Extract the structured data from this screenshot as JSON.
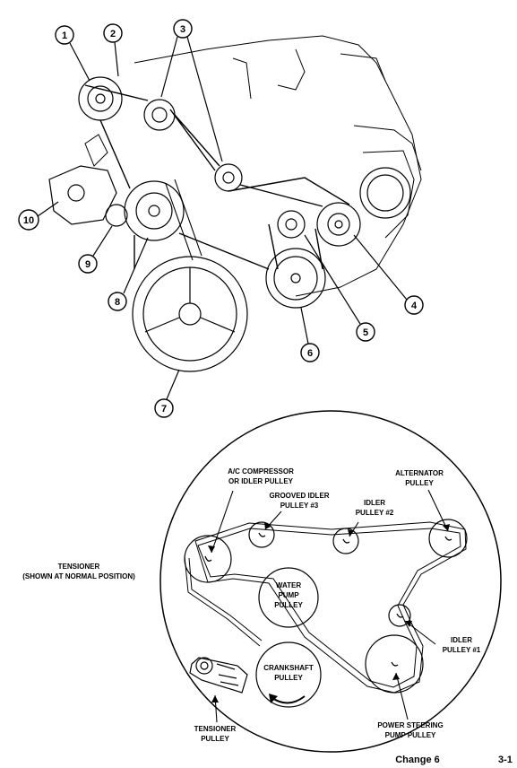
{
  "callouts": [
    "1",
    "2",
    "3",
    "4",
    "5",
    "6",
    "7",
    "8",
    "9",
    "10"
  ],
  "labels": {
    "ac_compressor": [
      "A/C COMPRESSOR",
      "OR IDLER PULLEY"
    ],
    "grooved_idler": [
      "GROOVED IDLER",
      "PULLEY #3"
    ],
    "idler2": [
      "IDLER",
      "PULLEY #2"
    ],
    "alternator": [
      "ALTERNATOR",
      "PULLEY"
    ],
    "tensioner": [
      "TENSIONER",
      "(SHOWN AT NORMAL POSITION)"
    ],
    "water_pump": [
      "WATER",
      "PUMP",
      "PULLEY"
    ],
    "idler1": [
      "IDLER",
      "PULLEY #1"
    ],
    "crankshaft": [
      "CRANKSHAFT",
      "PULLEY"
    ],
    "tensioner_pulley": [
      "TENSIONER",
      "PULLEY"
    ],
    "power_steering": [
      "POWER STEERING",
      "PUMP PULLEY"
    ]
  },
  "footer": {
    "change": "Change 6",
    "page": "3-1"
  }
}
